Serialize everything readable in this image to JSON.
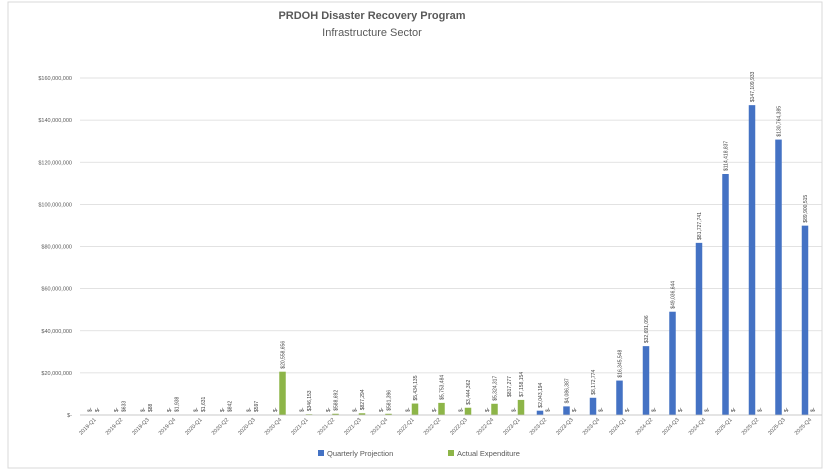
{
  "chart_data": {
    "type": "bar",
    "title": "PRDOH Disaster Recovery Program",
    "subtitle": "Infrastructure Sector",
    "xlabel": "",
    "ylabel": "",
    "ylim": [
      0,
      160000000
    ],
    "yticks": [
      {
        "value": 0,
        "label": "$-"
      },
      {
        "value": 20000000,
        "label": "$20,000,000"
      },
      {
        "value": 40000000,
        "label": "$40,000,000"
      },
      {
        "value": 60000000,
        "label": "$60,000,000"
      },
      {
        "value": 80000000,
        "label": "$80,000,000"
      },
      {
        "value": 100000000,
        "label": "$100,000,000"
      },
      {
        "value": 120000000,
        "label": "$120,000,000"
      },
      {
        "value": 140000000,
        "label": "$140,000,000"
      },
      {
        "value": 160000000,
        "label": "$160,000,000"
      }
    ],
    "grid": true,
    "legend_position": "bottom",
    "categories": [
      "2019-Q1",
      "2019-Q2",
      "2019-Q3",
      "2019-Q4",
      "2020-Q1",
      "2020-Q2",
      "2020-Q3",
      "2020-Q4",
      "2021-Q1",
      "2021-Q2",
      "2021-Q3",
      "2021-Q4",
      "2022-Q1",
      "2022-Q2",
      "2022-Q3",
      "2022-Q4",
      "2023-Q1",
      "2023-Q2",
      "2023-Q3",
      "2023-Q4",
      "2024-Q1",
      "2024-Q2",
      "2024-Q3",
      "2024-Q4",
      "2025-Q1",
      "2025-Q2",
      "2025-Q3",
      "2025-Q4"
    ],
    "series": [
      {
        "name": "Quarterly Projection",
        "color": "#4472C4",
        "values": [
          0,
          0,
          0,
          0,
          0,
          0,
          0,
          0,
          0,
          0,
          0,
          0,
          0,
          0,
          0,
          0,
          0,
          2043194,
          4086387,
          8172774,
          16345548,
          32691096,
          49036644,
          81727741,
          114418837,
          147109933,
          130764385,
          89900515
        ],
        "labels": [
          "$-",
          "$-",
          "$-",
          "$-",
          "$-",
          "$-",
          "$-",
          "$-",
          "$-",
          "$-",
          "$-",
          "$-",
          "$-",
          "$-",
          "$-",
          "$-",
          "$-",
          "$2,043,194",
          "$4,086,387",
          "$8,172,774",
          "$16,345,548",
          "$32,691,096",
          "$49,036,644",
          "$81,727,741",
          "$114,418,837",
          "$147,109,933",
          "$130,764,385",
          "$89,900,515"
        ]
      },
      {
        "name": "Actual Expenditure",
        "color": "#8DB548",
        "values": [
          0,
          633,
          88,
          1938,
          1631,
          842,
          597,
          20558656,
          346153,
          588692,
          827294,
          581396,
          5434135,
          5753484,
          3444362,
          5324317,
          7158154,
          0,
          0,
          0,
          0,
          0,
          0,
          0,
          0,
          0,
          0,
          0
        ],
        "labels": [
          "$-",
          "$633",
          "$88",
          "$1,938",
          "$1,631",
          "$842",
          "$597",
          "$20,558,656",
          "$346,153",
          "$588,692",
          "$827,294",
          "$581,396",
          "$5,434,135",
          "$5,753,484",
          "$3,444,362",
          "$5,324,317",
          "$7,158,154",
          "$-",
          "$-",
          "$-",
          "$-",
          "$-",
          "$-",
          "$-",
          "$-",
          "$-",
          "$-",
          "$-"
        ]
      }
    ],
    "annotations": [
      "$817,277"
    ]
  }
}
